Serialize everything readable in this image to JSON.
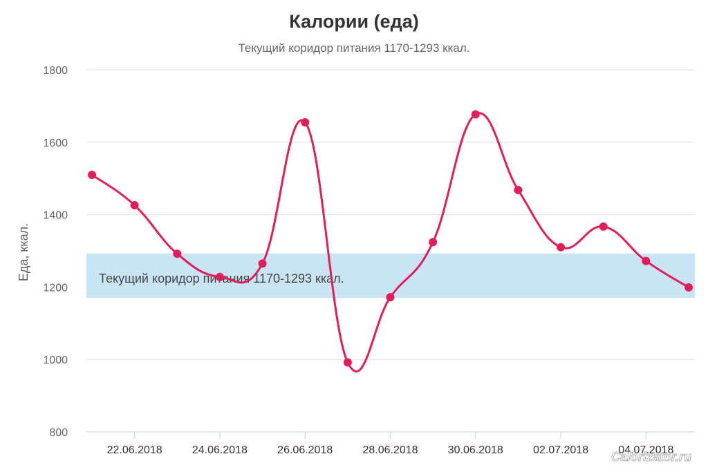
{
  "chart_data": {
    "type": "line",
    "title": "Калории (еда)",
    "subtitle": "Текущий коридор питания 1170-1293 ккал.",
    "ylabel": "Еда, ккал.",
    "xlabel": "",
    "ylim": [
      800,
      1800
    ],
    "yticks": [
      "800",
      "1000",
      "1200",
      "1400",
      "1600",
      "1800"
    ],
    "x": [
      "21.06.2018",
      "22.06.2018",
      "23.06.2018",
      "24.06.2018",
      "25.06.2018",
      "26.06.2018",
      "27.06.2018",
      "28.06.2018",
      "29.06.2018",
      "30.06.2018",
      "01.07.2018",
      "02.07.2018",
      "03.07.2018",
      "04.07.2018",
      "05.07.2018"
    ],
    "xtick_labels": [
      "22.06.2018",
      "24.06.2018",
      "26.06.2018",
      "28.06.2018",
      "30.06.2018",
      "02.07.2018",
      "04.07.2018"
    ],
    "series": [
      {
        "values": [
          1510,
          1426,
          1292,
          1228,
          1265,
          1655,
          992,
          1172,
          1324,
          1677,
          1468,
          1310,
          1367,
          1272,
          1199
        ]
      }
    ],
    "band": {
      "from": 1170,
      "to": 1293,
      "label": "Текущий коридор питания 1170-1293 ккал."
    },
    "grid": true,
    "legend": "none",
    "colors": {
      "line": "#e01e5a",
      "band": "#c9e5f3",
      "grid": "#e0e0e0",
      "axis": "#c0d0e0"
    }
  },
  "watermark": "Calorizator.ru"
}
